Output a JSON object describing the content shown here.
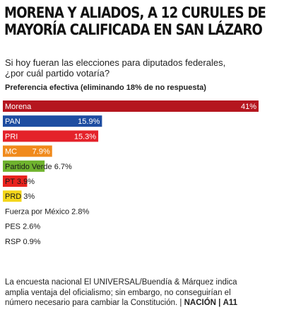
{
  "header": {
    "title_line1": "MORENA Y ALIADOS, A 12 CURULES DE",
    "title_line2": "MAYORÍA CALIFICADA EN SAN LÁZARO"
  },
  "question": {
    "line1": "Si hoy fueran las elecciones para diputados federales,",
    "line2": "¿por cuál partido votaría?"
  },
  "note": "Preferencia efectiva (eliminando 18% de no respuesta)",
  "chart_data": {
    "type": "bar",
    "orientation": "horizontal",
    "title": "MORENA Y ALIADOS, A 12 CURULES DE MAYORÍA CALIFICADA EN SAN LÁZARO",
    "subtitle": "Preferencia efectiva (eliminando 18% de no respuesta)",
    "categories": [
      "Morena",
      "PAN",
      "PRI",
      "MC",
      "Partido Verde",
      "PT",
      "PRD",
      "Fuerza por México",
      "PES",
      "RSP"
    ],
    "values": [
      41,
      15.9,
      15.3,
      7.9,
      6.7,
      3.9,
      3,
      2.8,
      2.6,
      0.9
    ],
    "value_labels": [
      "41%",
      "15.9%",
      "15.3%",
      "7.9%",
      "6.7%",
      "3.9%",
      "3%",
      "2.8%",
      "2.6%",
      "0.9%"
    ],
    "colors": [
      "#b5161f",
      "#1e4da1",
      "#e4222a",
      "#f08a1c",
      "#6fb32e",
      "#e8231f",
      "#f4d61a",
      "#ffffff",
      "#ffffff",
      "#ffffff"
    ],
    "label_inside": [
      true,
      true,
      true,
      true,
      true,
      true,
      true,
      false,
      false,
      false
    ],
    "label_color": [
      "#ffffff",
      "#ffffff",
      "#ffffff",
      "#ffffff",
      "#1a1a1a",
      "#1a1a1a",
      "#1a1a1a",
      "#1a1a1a",
      "#1a1a1a",
      "#1a1a1a"
    ],
    "value_inside_end": [
      true,
      true,
      true,
      true,
      false,
      false,
      false,
      false,
      false,
      false
    ],
    "xlim": [
      0,
      41
    ],
    "grid": false,
    "legend": "none"
  },
  "footer": {
    "line1": "La encuesta nacional El UNIVERSAL/Buendía & Márquez indica",
    "line2": "amplia ventaja del oficialismo; sin embargo, no conseguirían el",
    "line3_text": "número necesario para cambiar la Constitución. |",
    "section": "NACIÓN",
    "sep": "|",
    "page": "A11"
  }
}
